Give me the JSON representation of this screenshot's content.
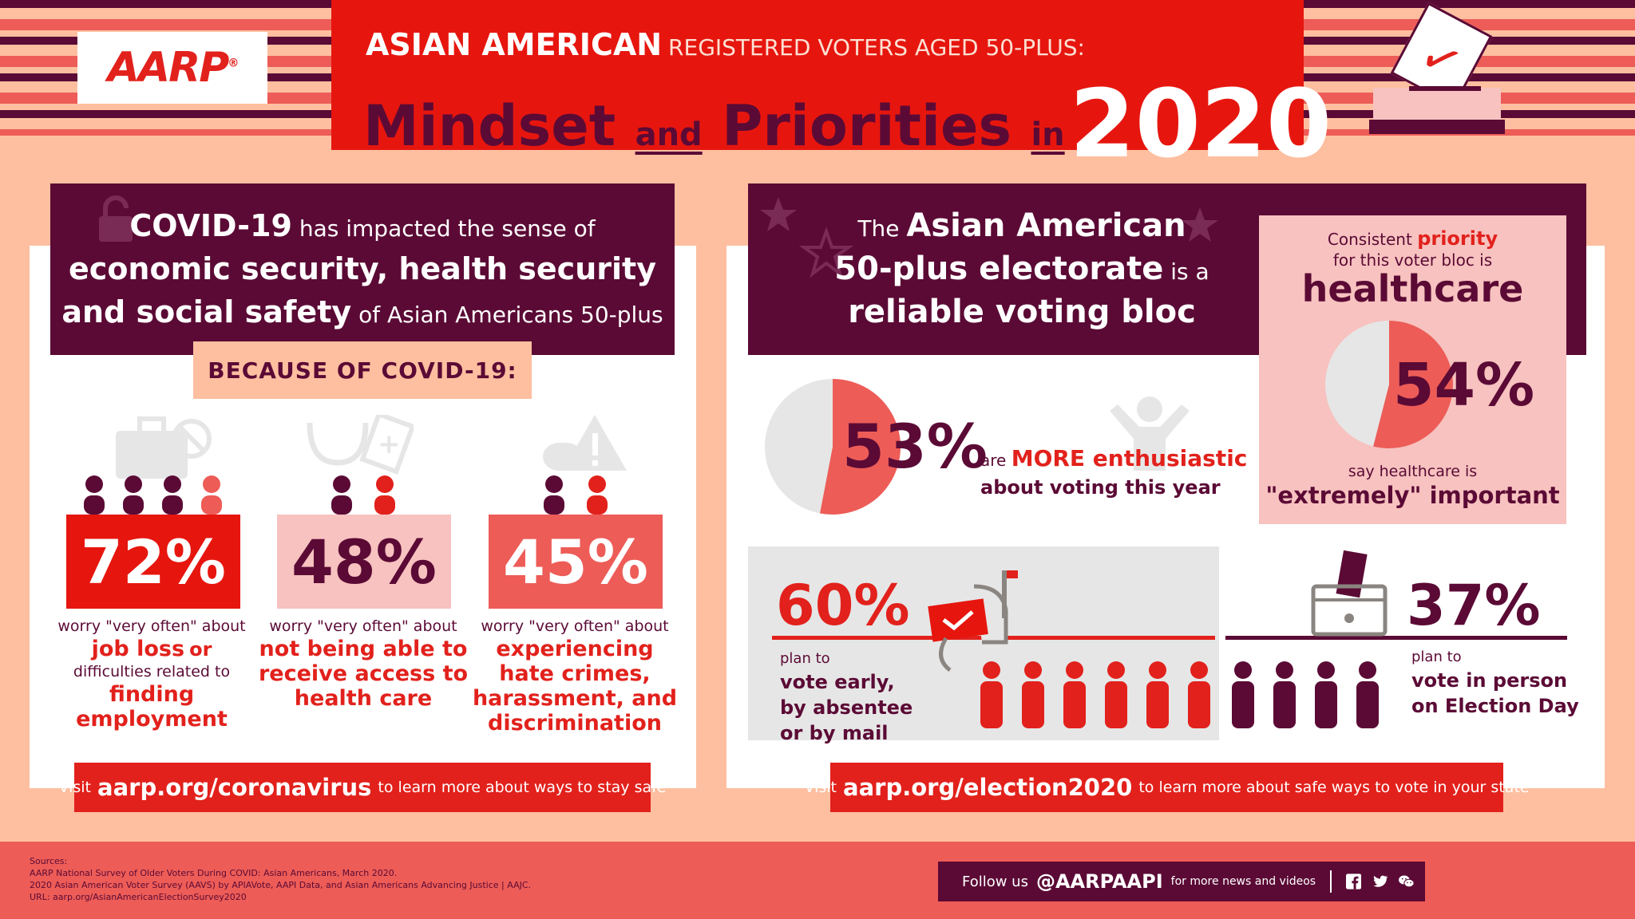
{
  "header": {
    "logo": "AARP",
    "title_line1_bold": "ASIAN AMERICAN",
    "title_line1_rest": "REGISTERED VOTERS AGED 50-PLUS:",
    "title_word1": "Mindset",
    "title_and": "and",
    "title_word2": "Priorities",
    "title_in": "in",
    "title_year": "2020"
  },
  "left": {
    "head_covid": "COVID-19",
    "head_has": "has impacted the sense",
    "head_of": "of",
    "head_line2": "economic security, health security",
    "head_line3": "and social safety",
    "head_line3_rest": "of Asian Americans 50-plus",
    "because": "BECAUSE OF COVID-19:",
    "stats": [
      {
        "pct": "72%",
        "cap1": "worry \"very often\" about",
        "hl1": "job loss",
        "mid": "or",
        "cap2": "difficulties related to",
        "hl2": "finding employment"
      },
      {
        "pct": "48%",
        "cap1": "worry \"very often\" about",
        "hl1": "not being able to",
        "hl2": "receive access to",
        "hl3": "health care"
      },
      {
        "pct": "45%",
        "cap1": "worry \"very often\" about",
        "hl1": "experiencing",
        "hl2": "hate crimes,",
        "hl3": "harassment, and",
        "hl4": "discrimination"
      }
    ],
    "visit_pre": "Visit",
    "visit_url": "aarp.org/coronavirus",
    "visit_post": "to learn more about ways to stay safe"
  },
  "right": {
    "head_the": "The",
    "head_aa": "Asian American",
    "head_line2": "50-plus electorate",
    "head_isa": "is a",
    "head_line3": "reliable voting bloc",
    "hc_consistent": "Consistent",
    "hc_priority": "priority",
    "hc_for": "for this voter bloc is",
    "hc_healthcare": "healthcare",
    "hc_pct": "54%",
    "hc_value": 54,
    "hc_say": "say healthcare is",
    "hc_extremely": "\"extremely\" important",
    "enth_pct": "53%",
    "enth_value": 53,
    "enth_are": "are",
    "enth_more": "MORE enthusiastic",
    "enth_about": "about voting this year",
    "early_pct": "60%",
    "early_plan": "plan to",
    "early_l1": "vote early,",
    "early_l2": "by absentee",
    "early_l3": "or by mail",
    "person_pct": "37%",
    "person_plan": "plan to",
    "person_l1": "vote in person",
    "person_l2": "on Election Day",
    "visit_pre": "Visit",
    "visit_url": "aarp.org/election2020",
    "visit_post": "to learn more about safe ways to vote in your state"
  },
  "footer": {
    "sources_label": "Sources:",
    "source1": "AARP National Survey of Older Voters During COVID: Asian Americans, March 2020.",
    "source2": "2020 Asian American Voter Survey (AAVS) by APIAVote, AAPI Data, and Asian Americans Advancing Justice | AAJC.",
    "source3": "URL: aarp.org/AsianAmericanElectionSurvey2020",
    "follow_pre": "Follow us",
    "follow_handle": "@AARPAAPI",
    "follow_post": "for more news and videos"
  },
  "colors": {
    "red": "#e2211c",
    "plum": "#5b0a35",
    "peach": "#fdbfa0",
    "pink": "#f7c2bf",
    "coral": "#ed5c57"
  }
}
